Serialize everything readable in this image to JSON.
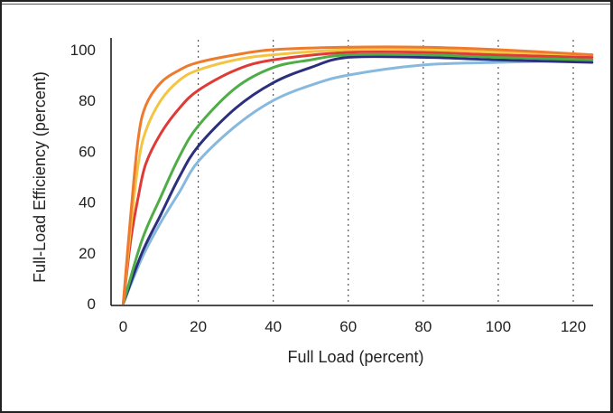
{
  "chart_data": {
    "type": "line",
    "title": "",
    "xlabel": "Full Load (percent)",
    "ylabel": "Full-Load Efficiency (percent)",
    "xlim": [
      0,
      125
    ],
    "ylim": [
      0,
      105
    ],
    "x_ticks": [
      0,
      20,
      40,
      60,
      80,
      100,
      120
    ],
    "y_ticks": [
      0,
      20,
      40,
      60,
      80,
      100
    ],
    "x_tick_labels": [
      "0",
      "20",
      "40",
      "60",
      "80",
      "100",
      "120"
    ],
    "y_tick_labels": [
      "0",
      "20",
      "40",
      "60",
      "80",
      "100"
    ],
    "grid": "vertical dotted",
    "legend": "none",
    "series": [
      {
        "color": "#ee7a2e",
        "points": [
          [
            0,
            0
          ],
          [
            2,
            35
          ],
          [
            4,
            65
          ],
          [
            6,
            78
          ],
          [
            10,
            87
          ],
          [
            15,
            92
          ],
          [
            20,
            95
          ],
          [
            30,
            98
          ],
          [
            40,
            100
          ],
          [
            60,
            101
          ],
          [
            80,
            101
          ],
          [
            100,
            100
          ],
          [
            125,
            98
          ]
        ]
      },
      {
        "color": "#f4c542",
        "points": [
          [
            0,
            0
          ],
          [
            2,
            30
          ],
          [
            4,
            55
          ],
          [
            6,
            68
          ],
          [
            10,
            80
          ],
          [
            15,
            88
          ],
          [
            20,
            92
          ],
          [
            30,
            96
          ],
          [
            40,
            98
          ],
          [
            60,
            100
          ],
          [
            80,
            100
          ],
          [
            100,
            99
          ],
          [
            125,
            98
          ]
        ]
      },
      {
        "color": "#e03a36",
        "points": [
          [
            0,
            0
          ],
          [
            2,
            25
          ],
          [
            4,
            42
          ],
          [
            6,
            55
          ],
          [
            10,
            67
          ],
          [
            15,
            77
          ],
          [
            20,
            84
          ],
          [
            30,
            92
          ],
          [
            40,
            96
          ],
          [
            60,
            99
          ],
          [
            80,
            99
          ],
          [
            100,
            98
          ],
          [
            125,
            97
          ]
        ]
      },
      {
        "color": "#4fad47",
        "points": [
          [
            0,
            0
          ],
          [
            5,
            25
          ],
          [
            10,
            42
          ],
          [
            15,
            58
          ],
          [
            20,
            70
          ],
          [
            30,
            85
          ],
          [
            40,
            93
          ],
          [
            50,
            96
          ],
          [
            60,
            98
          ],
          [
            80,
            98
          ],
          [
            100,
            97
          ],
          [
            125,
            96
          ]
        ]
      },
      {
        "color": "#2b2f7e",
        "points": [
          [
            0,
            0
          ],
          [
            5,
            20
          ],
          [
            10,
            35
          ],
          [
            15,
            50
          ],
          [
            20,
            62
          ],
          [
            30,
            77
          ],
          [
            40,
            87
          ],
          [
            50,
            93
          ],
          [
            60,
            97
          ],
          [
            80,
            97
          ],
          [
            100,
            96
          ],
          [
            125,
            95
          ]
        ]
      },
      {
        "color": "#86b9dd",
        "points": [
          [
            0,
            0
          ],
          [
            5,
            18
          ],
          [
            10,
            32
          ],
          [
            15,
            44
          ],
          [
            20,
            56
          ],
          [
            30,
            70
          ],
          [
            40,
            80
          ],
          [
            50,
            86
          ],
          [
            60,
            90
          ],
          [
            80,
            94
          ],
          [
            100,
            95
          ],
          [
            125,
            96
          ]
        ]
      }
    ]
  }
}
